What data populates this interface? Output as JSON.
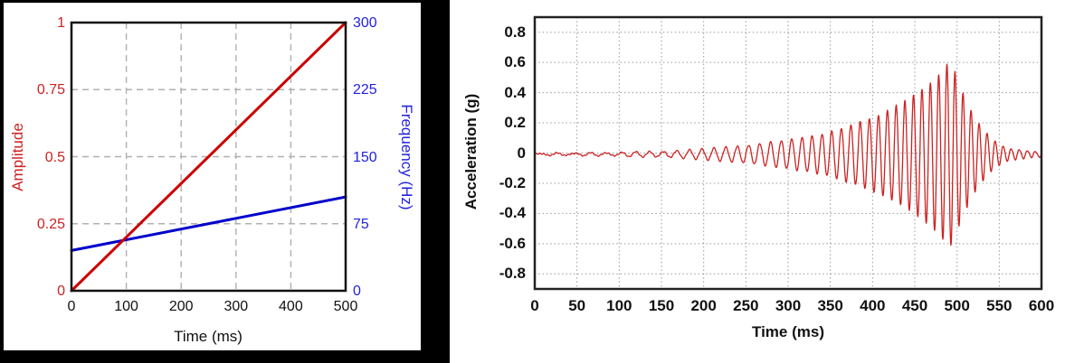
{
  "page": {
    "background": "#ffffff",
    "left_figure_frame_color": "#000000"
  },
  "chart_data": [
    {
      "type": "line",
      "xlabel": "Time (ms)",
      "ylabel_left": "Amplitude",
      "ylabel_right": "Frequency (Hz)",
      "x_range": [
        0,
        500
      ],
      "x_ticks": [
        "0",
        "100",
        "200",
        "300",
        "400",
        "500"
      ],
      "y_left_range": [
        0,
        1
      ],
      "y_left_ticks": [
        "0",
        "0.25",
        "0.5",
        "0.75",
        "1"
      ],
      "y_right_range": [
        0,
        300
      ],
      "y_right_ticks": [
        "0",
        "75",
        "150",
        "225",
        "300"
      ],
      "grid": "dashed gray lines at every labeled tick",
      "legend": "none",
      "series": [
        {
          "name": "Frequency (Hz)",
          "axis": "right",
          "color": "#0000cc",
          "points": [
            [
              0,
              45
            ],
            [
              500,
              105
            ]
          ]
        },
        {
          "name": "Amplitude",
          "axis": "left",
          "color": "#cc0000",
          "points": [
            [
              0,
              0
            ],
            [
              500,
              1
            ]
          ]
        }
      ]
    },
    {
      "type": "line",
      "xlabel": "Time (ms)",
      "ylabel": "Acceleration (g)",
      "x_range": [
        0,
        600
      ],
      "x_ticks": [
        "0",
        "50",
        "100",
        "150",
        "200",
        "250",
        "300",
        "350",
        "400",
        "450",
        "500",
        "550",
        "600"
      ],
      "y_range": [
        -0.9,
        0.9
      ],
      "y_ticks": [
        "0.8",
        "0.6",
        "0.4",
        "0.2",
        "0",
        "-0.2",
        "-0.4",
        "-0.6",
        "-0.8"
      ],
      "grid": "dotted gray lines every 50 ms and every 0.2 g",
      "legend": "none",
      "series": [
        {
          "name": "Acceleration",
          "color": "#cc2222",
          "peak_g": 0.6,
          "peak_time_ms": 488,
          "min_g": -0.66,
          "min_time_ms": 492,
          "signal": {
            "kind": "linear chirp with piecewise amplitude envelope, ring-down after sweep",
            "f0_hz": 45,
            "f1_hz": 105,
            "sweep_end_ms": 500,
            "dc_offset_g": -0.008,
            "noise_amp_g": 0.006,
            "envelope_ms_g": [
              [
                0,
                0.006
              ],
              [
                50,
                0.008
              ],
              [
                100,
                0.012
              ],
              [
                150,
                0.02
              ],
              [
                200,
                0.034
              ],
              [
                250,
                0.055
              ],
              [
                300,
                0.095
              ],
              [
                340,
                0.135
              ],
              [
                380,
                0.2
              ],
              [
                410,
                0.27
              ],
              [
                435,
                0.34
              ],
              [
                455,
                0.42
              ],
              [
                470,
                0.48
              ],
              [
                482,
                0.55
              ],
              [
                490,
                0.62
              ],
              [
                496,
                0.58
              ],
              [
                503,
                0.46
              ],
              [
                510,
                0.37
              ],
              [
                518,
                0.28
              ],
              [
                526,
                0.21
              ],
              [
                534,
                0.15
              ],
              [
                542,
                0.1
              ],
              [
                552,
                0.065
              ],
              [
                562,
                0.04
              ],
              [
                575,
                0.028
              ],
              [
                600,
                0.018
              ]
            ]
          }
        }
      ]
    }
  ]
}
